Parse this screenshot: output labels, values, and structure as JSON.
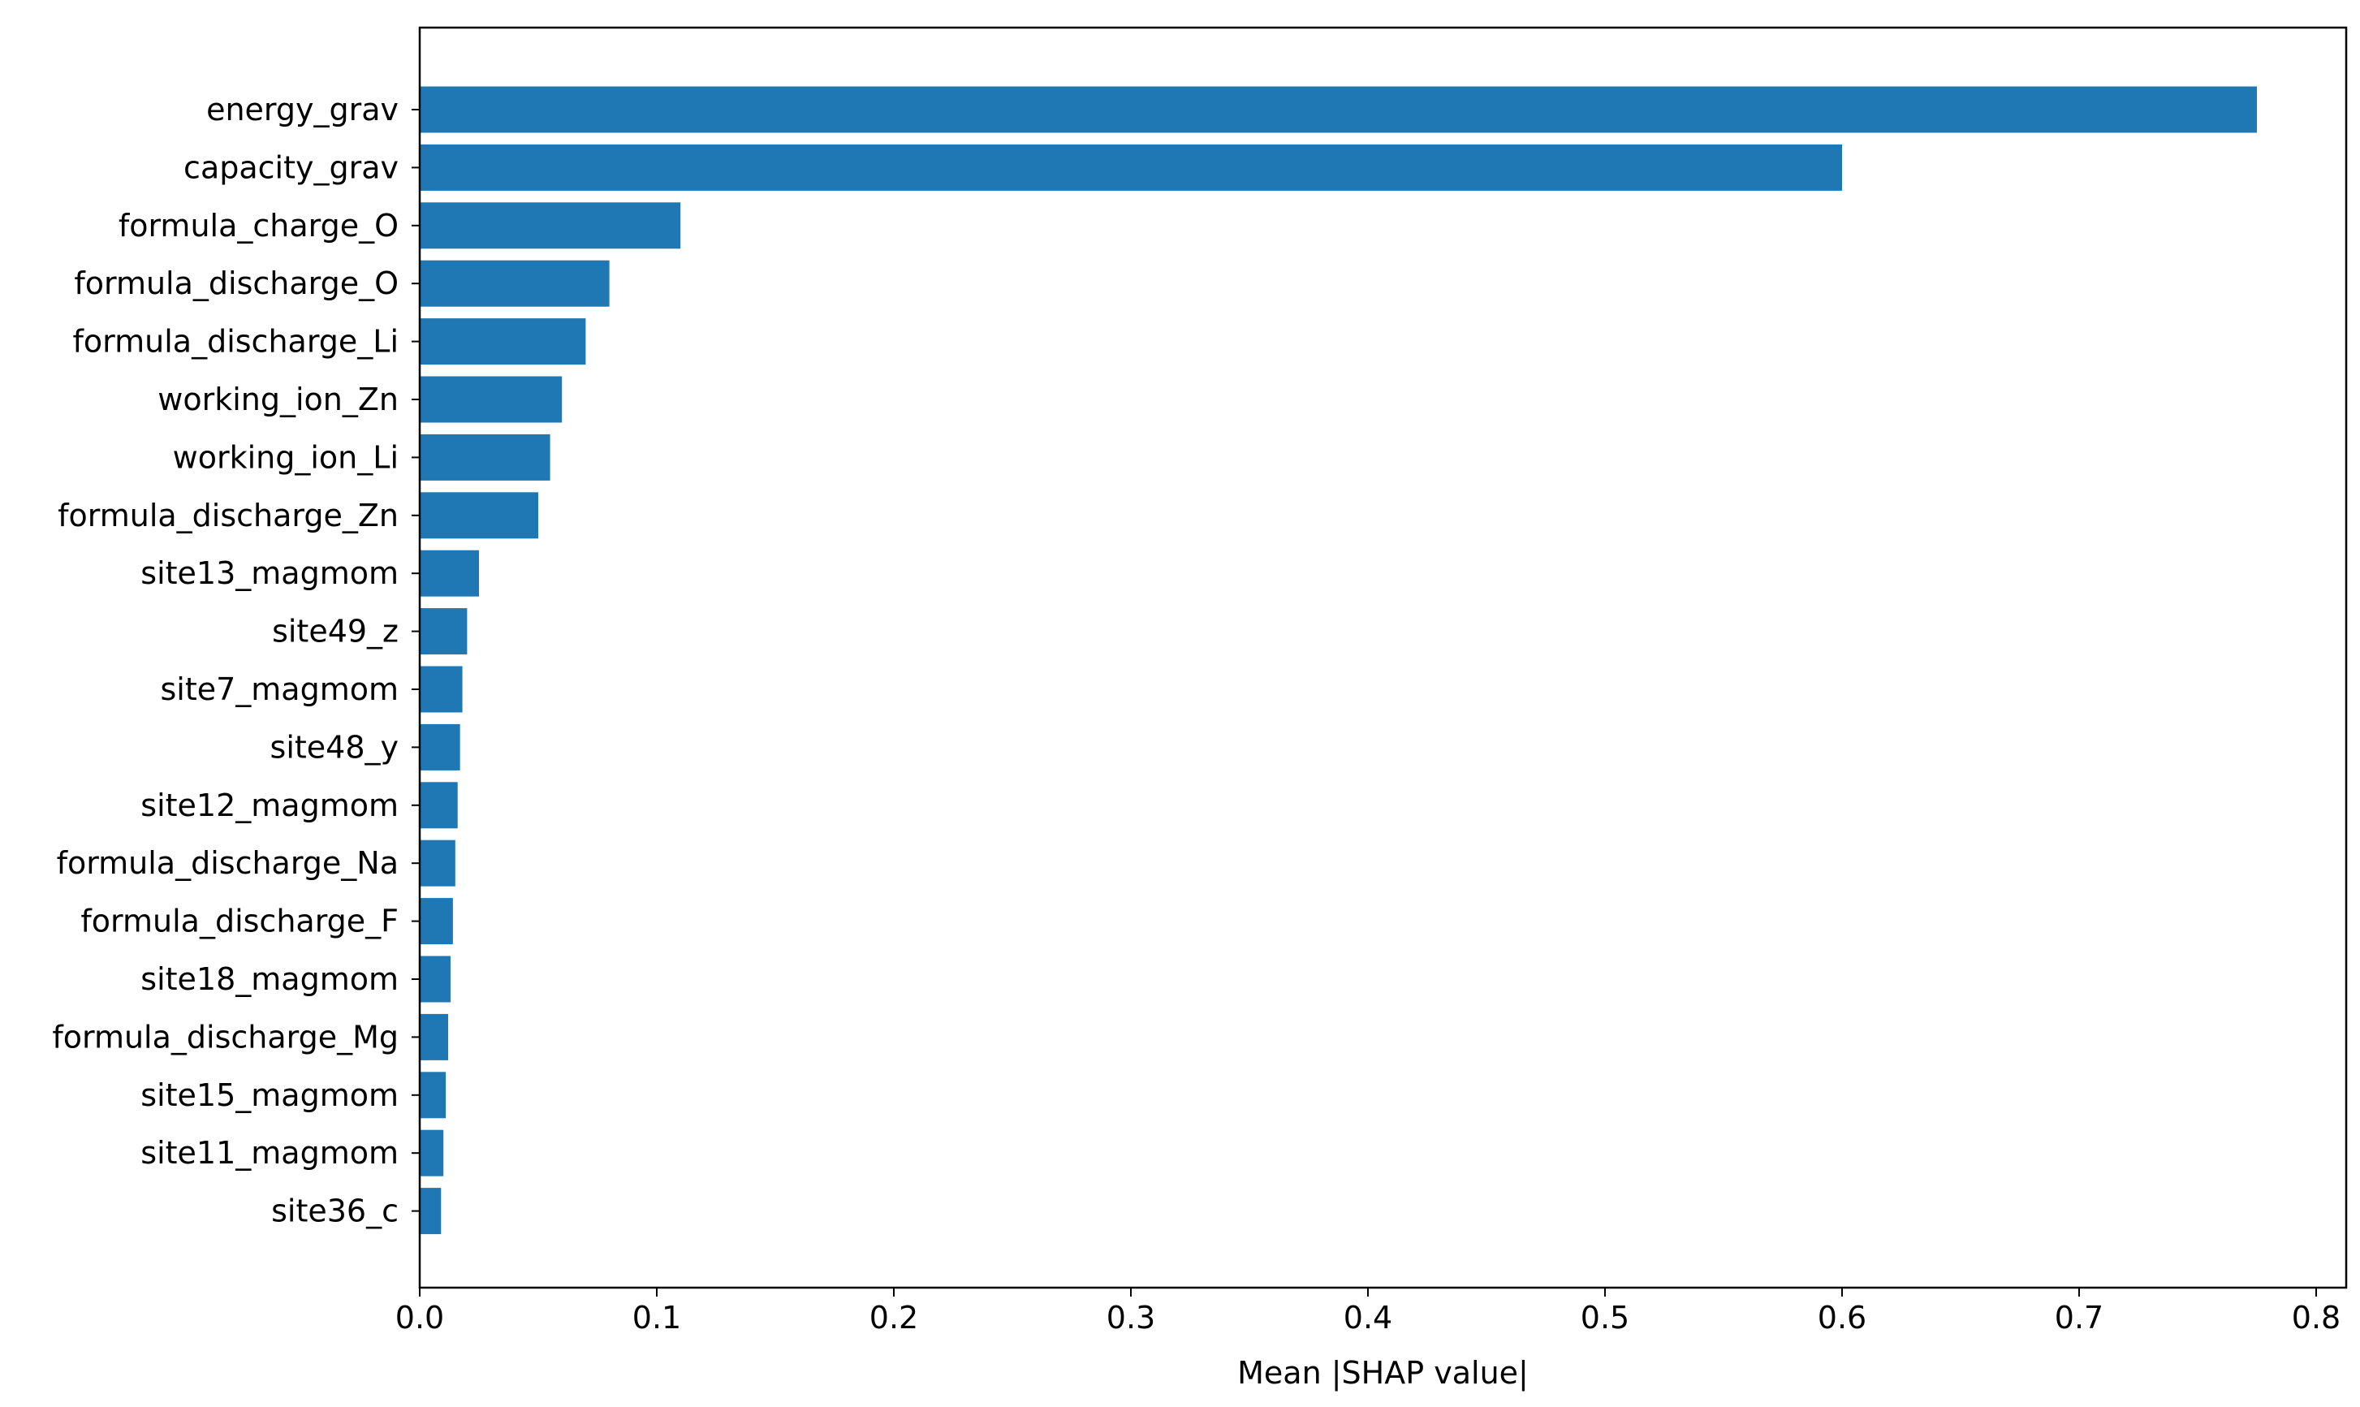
{
  "chart_data": {
    "type": "bar",
    "orientation": "horizontal",
    "title": "",
    "xlabel": "Mean |SHAP value|",
    "ylabel": "",
    "xlim": [
      0.0,
      0.8
    ],
    "x_ticks": [
      "0.0",
      "0.1",
      "0.2",
      "0.3",
      "0.4",
      "0.5",
      "0.6",
      "0.7",
      "0.8"
    ],
    "grid": false,
    "bar_color": "#1f77b4",
    "categories": [
      "energy_grav",
      "capacity_grav",
      "formula_charge_O",
      "formula_discharge_O",
      "formula_discharge_Li",
      "working_ion_Zn",
      "working_ion_Li",
      "formula_discharge_Zn",
      "site13_magmom",
      "site49_z",
      "site7_magmom",
      "site48_y",
      "site12_magmom",
      "formula_discharge_Na",
      "formula_discharge_F",
      "site18_magmom",
      "formula_discharge_Mg",
      "site15_magmom",
      "site11_magmom",
      "site36_c"
    ],
    "values": [
      0.775,
      0.6,
      0.11,
      0.08,
      0.07,
      0.06,
      0.055,
      0.05,
      0.025,
      0.02,
      0.018,
      0.017,
      0.016,
      0.015,
      0.014,
      0.013,
      0.012,
      0.011,
      0.01,
      0.009
    ]
  }
}
